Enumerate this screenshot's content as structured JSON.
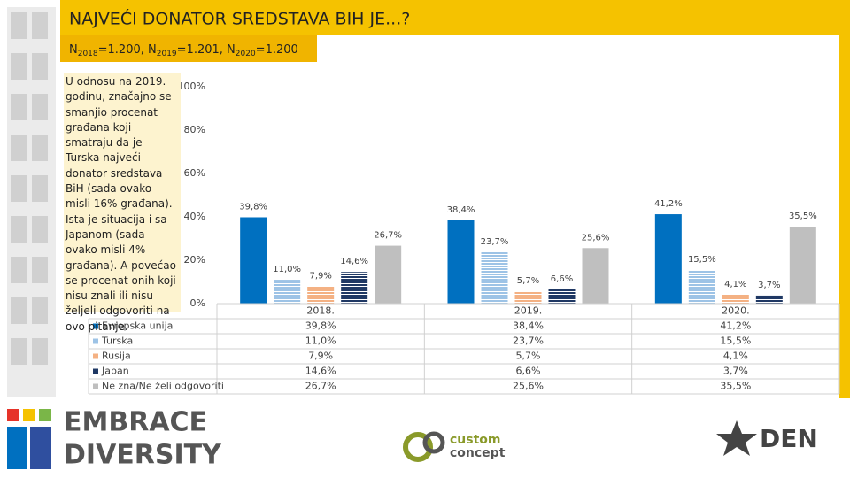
{
  "header": {
    "title": "NAJVEĆI DONATOR SREDSTAVA BIH JE...?",
    "subtitle_parts": [
      "N",
      "2018",
      "=1.200, N",
      "2019",
      "=1.201, N",
      "2020",
      "=1.200"
    ]
  },
  "note": "U odnosu na 2019. godinu, značajno se smanjio procenat građana koji smatraju da je Turska najveći donator sredstava BiH (sada ovako misli 16% građana). Ista je situacija i sa Japanom (sada ovako misli 4% građana). A povećao se procenat onih koji nisu znali ili nisu željeli odgovoriti na ovo pitanje.",
  "logos": {
    "left": [
      "EMBRACE",
      "DIVERSITY"
    ],
    "middle": [
      "custom",
      "concept"
    ],
    "right": "DEN"
  },
  "chart_data": {
    "type": "bar",
    "categories": [
      "2018.",
      "2019.",
      "2020."
    ],
    "ylim": [
      0,
      100
    ],
    "yticks": [
      {
        "value": 0,
        "label": "0%"
      },
      {
        "value": 20,
        "label": "20%"
      },
      {
        "value": 40,
        "label": "40%"
      },
      {
        "value": 60,
        "label": "60%"
      },
      {
        "value": 80,
        "label": "80%"
      },
      {
        "value": 100,
        "label": "100%"
      }
    ],
    "series": [
      {
        "name": "Evropska unija",
        "color": "#0070c0",
        "pattern": "solid",
        "values": [
          39.8,
          38.4,
          41.2
        ],
        "value_labels": [
          "39,8%",
          "38,4%",
          "41,2%"
        ]
      },
      {
        "name": "Turska",
        "color": "#9dc3e6",
        "pattern": "horizontal-lines",
        "values": [
          11.0,
          23.7,
          15.5
        ],
        "value_labels": [
          "11,0%",
          "23,7%",
          "15,5%"
        ]
      },
      {
        "name": "Rusija",
        "color": "#f4b183",
        "pattern": "horizontal-lines",
        "values": [
          7.9,
          5.7,
          4.1
        ],
        "value_labels": [
          "7,9%",
          "5,7%",
          "4,1%"
        ]
      },
      {
        "name": "Japan",
        "color": "#1f3864",
        "pattern": "horizontal-lines",
        "values": [
          14.6,
          6.6,
          3.7
        ],
        "value_labels": [
          "14,6%",
          "6,6%",
          "3,7%"
        ]
      },
      {
        "name": "Ne zna/Ne želi odgovoriti",
        "color": "#bfbfbf",
        "pattern": "solid",
        "values": [
          26.7,
          25.6,
          35.5
        ],
        "value_labels": [
          "26,7%",
          "25,6%",
          "35,5%"
        ]
      }
    ]
  }
}
